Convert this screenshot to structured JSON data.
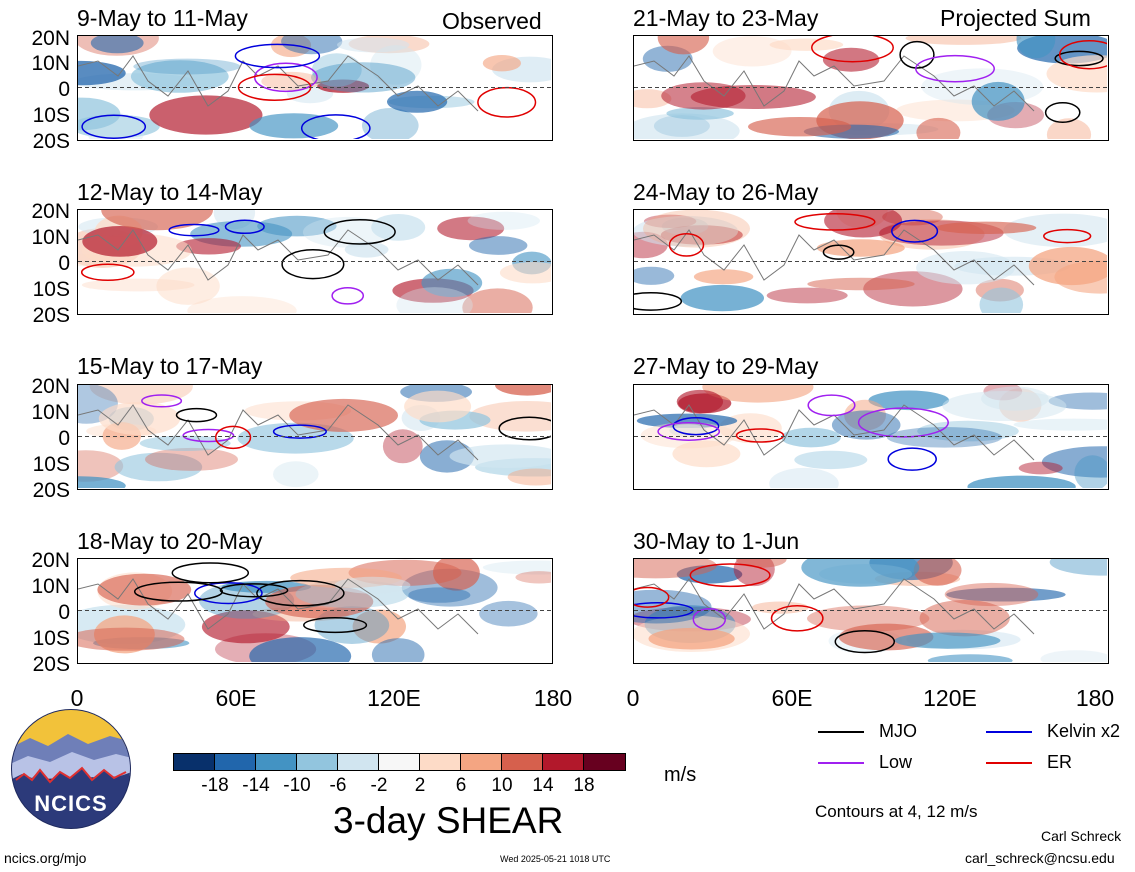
{
  "panels_left": [
    {
      "title": "9-May to 11-May",
      "tag": "Observed"
    },
    {
      "title": "12-May to 14-May",
      "tag": ""
    },
    {
      "title": "15-May to 17-May",
      "tag": ""
    },
    {
      "title": "18-May to 20-May",
      "tag": ""
    }
  ],
  "panels_right": [
    {
      "title": "21-May to 23-May",
      "tag": "Projected Sum"
    },
    {
      "title": "24-May to 26-May",
      "tag": ""
    },
    {
      "title": "27-May to 29-May",
      "tag": ""
    },
    {
      "title": "30-May to 1-Jun",
      "tag": ""
    }
  ],
  "lat_labels": [
    "20N",
    "10N",
    "0",
    "10S",
    "20S"
  ],
  "lon_labels": [
    "0",
    "60E",
    "120E",
    "180"
  ],
  "colorbar": {
    "colors": [
      "#08306b",
      "#2166ac",
      "#4393c3",
      "#92c5de",
      "#d1e5f0",
      "#f7f7f7",
      "#fddbc7",
      "#f4a582",
      "#d6604d",
      "#b2182b",
      "#67001f"
    ],
    "labels": [
      "-18",
      "-14",
      "-10",
      "-6",
      "-2",
      "2",
      "6",
      "10",
      "14",
      "18"
    ],
    "units": "m/s",
    "title": "3-day SHEAR"
  },
  "legend": {
    "items": [
      {
        "label": "MJO",
        "color": "#000000"
      },
      {
        "label": "Kelvin x2",
        "color": "#0000dd"
      },
      {
        "label": "Low",
        "color": "#a020f0"
      },
      {
        "label": "ER",
        "color": "#e00000"
      }
    ],
    "contours_note": "Contours at 4, 12 m/s"
  },
  "logo_text": "NCICS",
  "footer": {
    "url": "ncics.org/mjo",
    "timestamp": "Wed 2025-05-21 1018 UTC",
    "author": "Carl Schreck",
    "email": "carl_schreck@ncsu.edu"
  }
}
